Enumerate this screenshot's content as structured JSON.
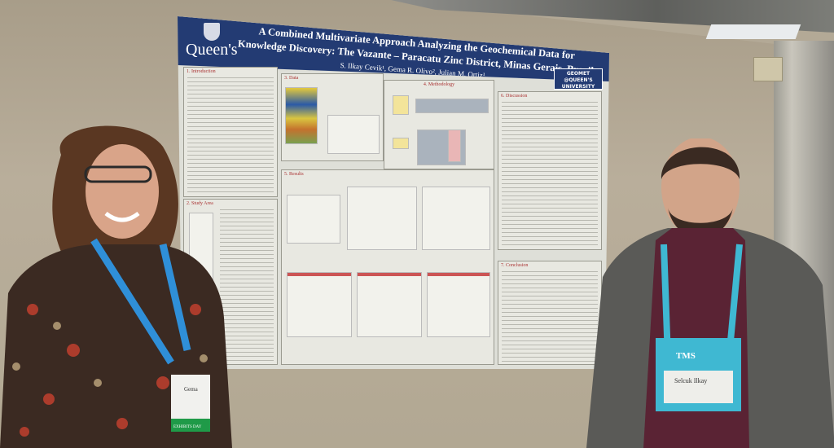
{
  "poster": {
    "institution": "Queen's",
    "title": "A Combined Multivariate Approach Analyzing the Geochemical Data for Knowledge Discovery: The Vazante – Paracatu Zinc District, Minas Gerais, Brazil",
    "authors": "S. Ilkay Cevik¹, Gema R. Olivo², Julian M. Ortiz¹",
    "badge": "GEOMET @QUEEN'S UNIVERSITY",
    "sections": [
      "1. Introduction",
      "2. Study Area",
      "3. Data",
      "4. Methodology",
      "5. Results",
      "6. Discussion",
      "7. Conclusion"
    ]
  },
  "badges": {
    "left_name": "Gema",
    "left_ribbon": "EXHIBITS DAY",
    "right_name": "Selcuk Ilkay",
    "right_event": "TMS"
  },
  "colors": {
    "banner": "#233b73",
    "lanyard": "#2f8fd8",
    "right_lanyard": "#3fb8d2"
  }
}
